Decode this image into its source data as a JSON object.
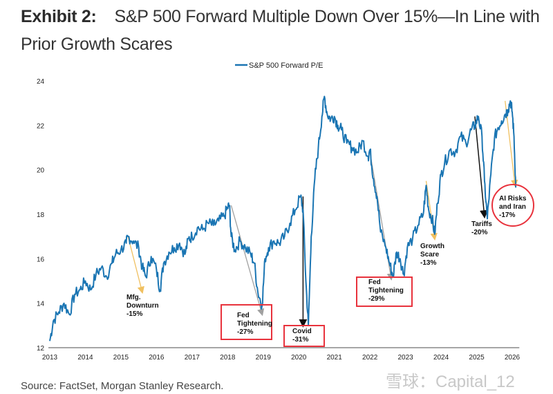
{
  "header": {
    "exhibit_label": "Exhibit 2:",
    "title": "S&P 500 Forward Multiple Down Over 15%—In Line with Prior Growth Scares"
  },
  "footer": {
    "source": "Source: FactSet, Morgan Stanley Research.",
    "watermark": "雪球：Capital_12"
  },
  "colors": {
    "series": "#1a75b3",
    "arrow_gold": "#f0c060",
    "arrow_gray": "#a0a0a0",
    "arrow_black": "#111111",
    "highlight_red": "#e8323c",
    "axis": "#888888"
  },
  "chart_data": {
    "type": "line",
    "title": "",
    "xlabel": "",
    "ylabel": "",
    "xlim": [
      2013,
      2026.2
    ],
    "ylim": [
      12,
      24
    ],
    "grid": false,
    "legend": {
      "position": "top-center",
      "entries": [
        "S&P 500 Forward P/E"
      ]
    },
    "x_ticks": [
      "2013",
      "2014",
      "2015",
      "2016",
      "2017",
      "2018",
      "2019",
      "2020",
      "2021",
      "2022",
      "2023",
      "2024",
      "2025",
      "2026"
    ],
    "y_ticks": [
      "12",
      "14",
      "16",
      "18",
      "20",
      "22",
      "24"
    ],
    "series": [
      {
        "name": "S&P 500 Forward P/E",
        "x": [
          2013.0,
          2013.1,
          2013.25,
          2013.4,
          2013.55,
          2013.7,
          2013.85,
          2014.0,
          2014.15,
          2014.3,
          2014.45,
          2014.6,
          2014.75,
          2014.85,
          2015.0,
          2015.15,
          2015.2,
          2015.35,
          2015.5,
          2015.6,
          2015.7,
          2015.85,
          2016.0,
          2016.1,
          2016.2,
          2016.35,
          2016.5,
          2016.65,
          2016.8,
          2016.9,
          2017.0,
          2017.15,
          2017.3,
          2017.45,
          2017.6,
          2017.75,
          2017.9,
          2018.0,
          2018.05,
          2018.1,
          2018.2,
          2018.35,
          2018.5,
          2018.65,
          2018.75,
          2018.85,
          2018.97,
          2019.05,
          2019.15,
          2019.3,
          2019.45,
          2019.6,
          2019.75,
          2019.9,
          2020.05,
          2020.12,
          2020.2,
          2020.27,
          2020.35,
          2020.45,
          2020.55,
          2020.65,
          2020.72,
          2020.8,
          2020.9,
          2021.0,
          2021.1,
          2021.2,
          2021.35,
          2021.5,
          2021.65,
          2021.8,
          2021.95,
          2022.0,
          2022.1,
          2022.2,
          2022.3,
          2022.45,
          2022.55,
          2022.65,
          2022.75,
          2022.85,
          2022.95,
          2023.05,
          2023.2,
          2023.35,
          2023.5,
          2023.58,
          2023.65,
          2023.75,
          2023.82,
          2023.9,
          2024.0,
          2024.1,
          2024.25,
          2024.4,
          2024.55,
          2024.7,
          2024.85,
          2024.95,
          2025.05,
          2025.15,
          2025.22,
          2025.3,
          2025.4,
          2025.5,
          2025.6,
          2025.7,
          2025.8,
          2025.88,
          2025.95,
          2026.0,
          2026.05,
          2026.1
        ],
        "values": [
          12.3,
          13.2,
          13.6,
          14.0,
          13.5,
          14.4,
          14.6,
          15.0,
          14.6,
          15.3,
          15.6,
          15.2,
          15.8,
          16.2,
          16.4,
          16.7,
          17.0,
          16.8,
          16.5,
          15.6,
          15.2,
          16.1,
          15.5,
          14.6,
          15.8,
          16.3,
          16.5,
          16.7,
          16.2,
          16.9,
          17.0,
          17.4,
          17.3,
          17.6,
          17.5,
          17.7,
          17.9,
          18.3,
          18.4,
          17.0,
          16.4,
          16.8,
          16.5,
          16.2,
          15.8,
          14.5,
          13.9,
          16.0,
          16.5,
          16.8,
          16.7,
          17.0,
          17.6,
          18.2,
          18.8,
          18.2,
          15.0,
          13.0,
          17.0,
          19.6,
          21.0,
          22.4,
          23.3,
          22.5,
          22.3,
          22.4,
          22.0,
          21.8,
          21.2,
          21.0,
          20.8,
          21.3,
          20.6,
          20.9,
          19.6,
          18.8,
          17.2,
          16.5,
          15.8,
          15.2,
          16.3,
          16.0,
          15.3,
          16.5,
          16.9,
          17.5,
          18.0,
          19.3,
          18.2,
          17.8,
          17.1,
          18.5,
          19.8,
          20.3,
          20.9,
          20.8,
          21.5,
          21.2,
          21.8,
          22.0,
          22.4,
          21.5,
          19.5,
          17.8,
          19.8,
          21.4,
          21.9,
          22.2,
          22.5,
          22.7,
          23.1,
          22.6,
          21.5,
          19.2
        ]
      }
    ],
    "annotations": [
      {
        "label": [
          "Mfg.",
          "Downturn",
          "-15%"
        ],
        "event": "Mfg. Downturn",
        "change_pct": -15,
        "from": [
          2015.2,
          17.0
        ],
        "to": [
          2015.6,
          14.5
        ],
        "arrow_color": "gold",
        "highlight": "none"
      },
      {
        "label": [
          "Fed",
          "Tightening",
          "-27%"
        ],
        "event": "Fed Tightening",
        "change_pct": -27,
        "from": [
          2018.1,
          18.4
        ],
        "to": [
          2018.97,
          13.5
        ],
        "arrow_color": "gray",
        "highlight": "box"
      },
      {
        "label": [
          "Covid",
          "-31%"
        ],
        "event": "Covid",
        "change_pct": -31,
        "from": [
          2020.12,
          18.8
        ],
        "to": [
          2020.12,
          13.0
        ],
        "arrow_color": "black",
        "highlight": "box"
      },
      {
        "label": [
          "Fed",
          "Tightening",
          "-29%"
        ],
        "event": "Fed Tightening",
        "change_pct": -29,
        "from": [
          2022.0,
          20.8
        ],
        "to": [
          2022.6,
          15.1
        ],
        "arrow_color": "gray",
        "highlight": "box"
      },
      {
        "label": [
          "Growth",
          "Scare",
          "-13%"
        ],
        "event": "Growth Scare",
        "change_pct": -13,
        "from": [
          2023.58,
          19.5
        ],
        "to": [
          2023.82,
          16.9
        ],
        "arrow_color": "gold",
        "highlight": "none"
      },
      {
        "label": [
          "Tariffs",
          "-20%"
        ],
        "event": "Tariffs",
        "change_pct": -20,
        "from": [
          2024.95,
          22.4
        ],
        "to": [
          2025.22,
          17.9
        ],
        "arrow_color": "black",
        "highlight": "none"
      },
      {
        "label": [
          "AI Risks",
          "and Iran",
          "-17%"
        ],
        "event": "AI Risks and Iran",
        "change_pct": -17,
        "from": [
          2025.8,
          23.1
        ],
        "to": [
          2026.08,
          19.3
        ],
        "arrow_color": "gold",
        "highlight": "circle"
      }
    ]
  }
}
